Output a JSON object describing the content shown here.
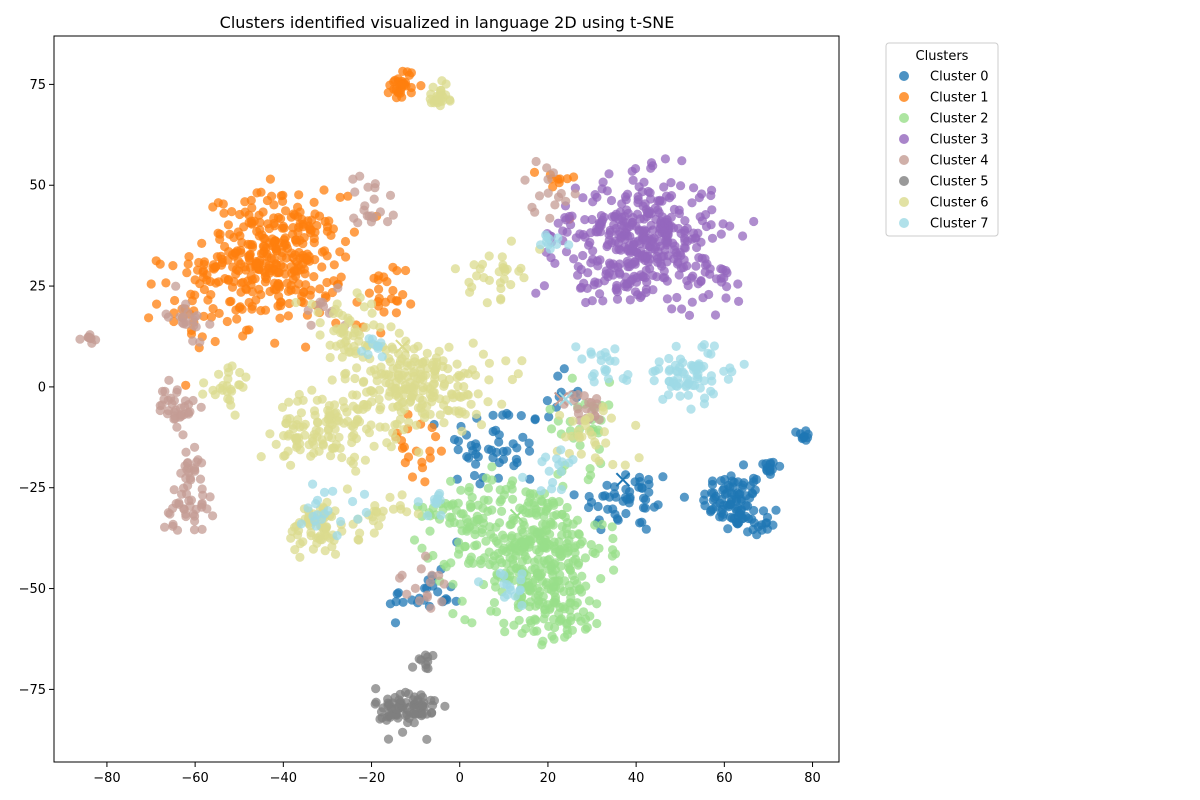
{
  "chart_data": {
    "type": "scatter",
    "title": "Clusters identified visualized in language 2D using t-SNE",
    "xlabel": "",
    "ylabel": "",
    "xlim": [
      -92,
      86
    ],
    "ylim": [
      -93,
      87
    ],
    "x_ticks": [
      -80,
      -60,
      -40,
      -20,
      0,
      20,
      40,
      60,
      80
    ],
    "y_ticks": [
      -75,
      -50,
      -25,
      0,
      25,
      50,
      75
    ],
    "x_tick_labels": [
      "−80",
      "−60",
      "−40",
      "−20",
      "0",
      "20",
      "40",
      "60",
      "80"
    ],
    "y_tick_labels": [
      "−75",
      "−50",
      "−25",
      "0",
      "25",
      "50",
      "75"
    ],
    "grid": false,
    "legend": {
      "title": "Clusters",
      "placement": "upper-right-outside"
    },
    "series": [
      {
        "name": "Cluster 0",
        "color": "#1f77b4",
        "centroid": [
          37,
          -23
        ],
        "blobs": [
          [
            62,
            -28,
            5,
            5,
            80
          ],
          [
            78,
            -12,
            1,
            1,
            10
          ],
          [
            70,
            -20,
            2,
            2,
            15
          ],
          [
            38,
            -28,
            8,
            6,
            50
          ],
          [
            8,
            -15,
            8,
            8,
            50
          ],
          [
            -8,
            -52,
            6,
            4,
            25
          ],
          [
            22,
            -2,
            4,
            4,
            10
          ],
          [
            66,
            -34,
            3,
            2,
            20
          ]
        ]
      },
      {
        "name": "Cluster 1",
        "color": "#ff7f0e",
        "centroid": [
          -37,
          30
        ],
        "blobs": [
          [
            -42,
            32,
            11,
            11,
            330
          ],
          [
            -13,
            75,
            2,
            3,
            30
          ],
          [
            -60,
            22,
            6,
            8,
            40
          ],
          [
            -18,
            20,
            4,
            8,
            25
          ],
          [
            22,
            50,
            3,
            4,
            10
          ],
          [
            -10,
            -15,
            6,
            8,
            20
          ]
        ]
      },
      {
        "name": "Cluster 2",
        "color": "#98df8a",
        "centroid": [
          13,
          -32
        ],
        "blobs": [
          [
            16,
            -40,
            12,
            12,
            340
          ],
          [
            22,
            -55,
            8,
            6,
            80
          ],
          [
            0,
            -30,
            6,
            6,
            40
          ],
          [
            28,
            -10,
            6,
            8,
            30
          ]
        ]
      },
      {
        "name": "Cluster 3",
        "color": "#9467bd",
        "centroid": [
          42,
          38
        ],
        "blobs": [
          [
            42,
            38,
            11,
            10,
            330
          ],
          [
            36,
            26,
            8,
            5,
            40
          ],
          [
            57,
            27,
            6,
            5,
            30
          ],
          [
            22,
            36,
            3,
            5,
            15
          ]
        ]
      },
      {
        "name": "Cluster 4",
        "color": "#c5b0d5",
        "render_color": "#c49c94",
        "centroid": [
          23,
          -3
        ],
        "blobs": [
          [
            -64,
            -5,
            3,
            4,
            35
          ],
          [
            -62,
            -30,
            4,
            4,
            35
          ],
          [
            -61,
            -20,
            2,
            3,
            20
          ],
          [
            -84,
            12,
            1,
            1,
            10
          ],
          [
            -62,
            18,
            3,
            4,
            20
          ],
          [
            -20,
            45,
            4,
            6,
            20
          ],
          [
            28,
            -5,
            3,
            3,
            20
          ],
          [
            -8,
            -50,
            4,
            4,
            15
          ],
          [
            -30,
            20,
            4,
            4,
            10
          ],
          [
            20,
            50,
            4,
            5,
            15
          ]
        ]
      },
      {
        "name": "Cluster 5",
        "color": "#7f7f7f",
        "centroid": [
          -13,
          -80
        ],
        "blobs": [
          [
            -12,
            -80,
            5,
            4,
            80
          ],
          [
            -8,
            -68,
            2,
            2,
            10
          ]
        ]
      },
      {
        "name": "Cluster 6",
        "color": "#dbdb8d",
        "centroid": [
          -13,
          10
        ],
        "blobs": [
          [
            -10,
            0,
            12,
            8,
            220
          ],
          [
            -30,
            -10,
            8,
            6,
            100
          ],
          [
            -32,
            -35,
            5,
            5,
            60
          ],
          [
            8,
            28,
            4,
            4,
            30
          ],
          [
            -5,
            72,
            2,
            2,
            25
          ],
          [
            -25,
            12,
            8,
            8,
            60
          ],
          [
            30,
            -12,
            6,
            6,
            30
          ],
          [
            -52,
            0,
            4,
            4,
            25
          ],
          [
            -20,
            -32,
            5,
            4,
            25
          ],
          [
            -38,
            -15,
            2,
            2,
            10
          ]
        ]
      },
      {
        "name": "Cluster 7",
        "color": "#9edae5",
        "centroid": [
          24,
          -3
        ],
        "blobs": [
          [
            52,
            3,
            8,
            5,
            70
          ],
          [
            32,
            5,
            4,
            4,
            20
          ],
          [
            -30,
            -30,
            6,
            4,
            20
          ],
          [
            22,
            -20,
            5,
            4,
            15
          ],
          [
            12,
            -50,
            4,
            3,
            15
          ],
          [
            -5,
            -28,
            3,
            3,
            10
          ],
          [
            -20,
            10,
            3,
            3,
            10
          ],
          [
            20,
            36,
            3,
            2,
            10
          ]
        ]
      }
    ]
  }
}
